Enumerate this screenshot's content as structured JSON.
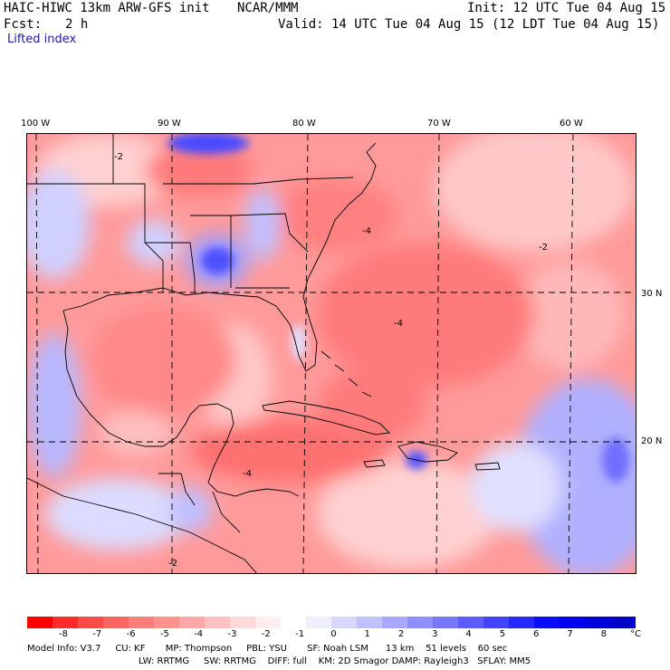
{
  "header": {
    "model": "HAIC-HIWC 13km ARW-GFS init",
    "org": "NCAR/MMM",
    "init": "Init: 12 UTC Tue 04 Aug 15",
    "fcst_label": "Fcst:",
    "fcst_value": "2 h",
    "valid": "Valid: 14 UTC Tue 04 Aug 15 (12 LDT Tue 04 Aug 15)",
    "field": "Lifted index"
  },
  "lon_labels": [
    "100 W",
    "90 W",
    "80 W",
    "70 W",
    "60 W"
  ],
  "lat_labels": [
    "30 N",
    "20 N"
  ],
  "contour_labels": [
    "-2",
    "-4"
  ],
  "colorbar": {
    "ticks": [
      "-8",
      "-7",
      "-6",
      "-5",
      "-4",
      "-3",
      "-2",
      "-1",
      "0",
      "1",
      "2",
      "3",
      "4",
      "5",
      "6",
      "7",
      "8"
    ],
    "unit": "°C",
    "colors": [
      "#ff0000",
      "#ff2a2a",
      "#ff4a4a",
      "#ff6464",
      "#ff7c7c",
      "#ff9191",
      "#ffa8a8",
      "#ffc0c0",
      "#ffd8d8",
      "#ffeeee",
      "#ffffff",
      "#eeeeff",
      "#d8d8ff",
      "#c0c0ff",
      "#a8a8ff",
      "#8f8fff",
      "#7676ff",
      "#5c5cff",
      "#4242ff",
      "#2727ff",
      "#0c0cff",
      "#0000ee",
      "#0000dd",
      "#0000cc"
    ]
  },
  "footer": {
    "line1": "Model Info: V3.7     CU: KF       MP: Thompson     PBL: YSU       SF: Noah LSM      13 km    51 levels    60 sec",
    "line2": "LW: RRTMG     SW: RRTMG    DIFF: full    KM: 2D Smagor DAMP: Rayleigh3   SFLAY: MM5"
  }
}
